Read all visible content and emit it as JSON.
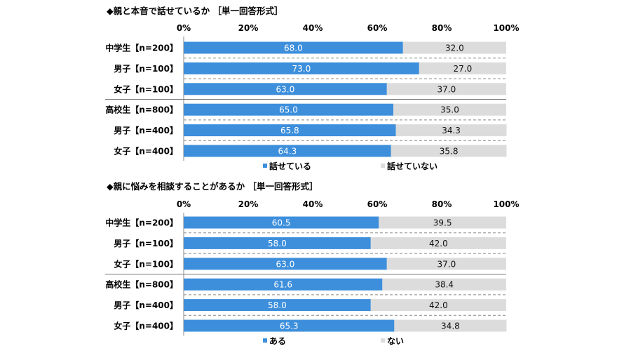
{
  "chart_data": [
    {
      "type": "bar",
      "orientation": "horizontal",
      "stacked": true,
      "title": "◆親と本音で話せているか ［単一回答形式］",
      "categories": [
        "中学生【n=200】",
        "男子【n=100】",
        "女子【n=100】",
        "高校生【n=800】",
        "男子【n=400】",
        "女子【n=400】"
      ],
      "series": [
        {
          "name": "話せている",
          "values": [
            68.0,
            73.0,
            63.0,
            65.0,
            65.8,
            64.3
          ],
          "labels": [
            "68.0",
            "73.0",
            "63.0",
            "65.0",
            "65.8",
            "64.3"
          ],
          "color": "#3d8fdc"
        },
        {
          "name": "話せていない",
          "values": [
            32.0,
            27.0,
            37.0,
            35.0,
            34.3,
            35.8
          ],
          "labels": [
            "32.0",
            "27.0",
            "37.0",
            "35.0",
            "34.3",
            "35.8"
          ],
          "color": "#dcdcdc"
        }
      ],
      "xlim": [
        0,
        100
      ],
      "xticks": [
        "0%",
        "20%",
        "40%",
        "60%",
        "80%",
        "100%"
      ],
      "legend": "bottom"
    },
    {
      "type": "bar",
      "orientation": "horizontal",
      "stacked": true,
      "title": "◆親に悩みを相談することがあるか ［単一回答形式］",
      "categories": [
        "中学生【n=200】",
        "男子【n=100】",
        "女子【n=100】",
        "高校生【n=800】",
        "男子【n=400】",
        "女子【n=400】"
      ],
      "series": [
        {
          "name": "ある",
          "values": [
            60.5,
            58.0,
            63.0,
            61.6,
            58.0,
            65.3
          ],
          "labels": [
            "60.5",
            "58.0",
            "63.0",
            "61.6",
            "58.0",
            "65.3"
          ],
          "color": "#3d8fdc"
        },
        {
          "name": "ない",
          "values": [
            39.5,
            42.0,
            37.0,
            38.4,
            42.0,
            34.8
          ],
          "labels": [
            "39.5",
            "42.0",
            "37.0",
            "38.4",
            "42.0",
            "34.8"
          ],
          "color": "#dcdcdc"
        }
      ],
      "xlim": [
        0,
        100
      ],
      "xticks": [
        "0%",
        "20%",
        "40%",
        "60%",
        "80%",
        "100%"
      ],
      "legend": "bottom"
    }
  ]
}
